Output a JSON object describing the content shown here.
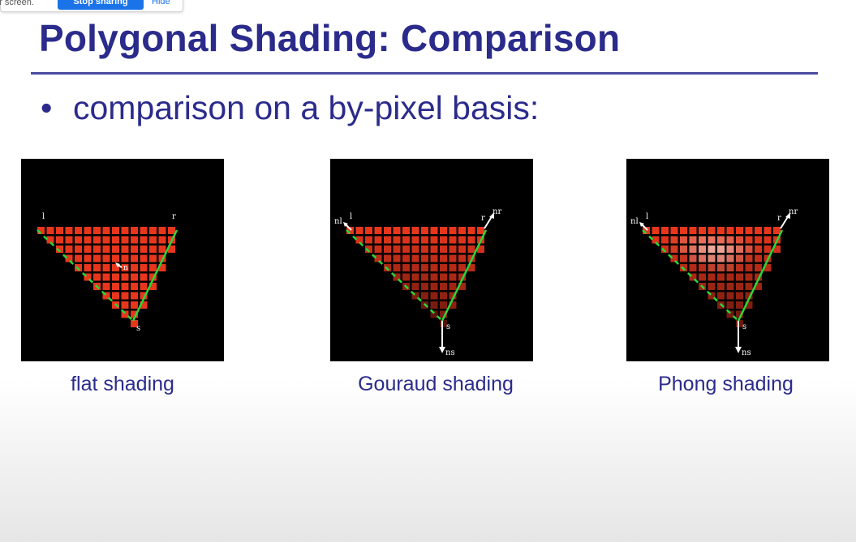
{
  "share_bar": {
    "message": "ur screen.",
    "stop_label": "Stop sharing",
    "hide_label": "Hide"
  },
  "slide": {
    "title": "Polygonal Shading: Comparison",
    "bullet": "comparison on a by-pixel basis:",
    "panels": [
      {
        "caption": "flat shading",
        "labels": {
          "l": "l",
          "r": "r",
          "s": "s",
          "n": "n"
        }
      },
      {
        "caption": "Gouraud shading",
        "labels": {
          "nl": "nl",
          "l": "l",
          "r": "r",
          "nr": "nr",
          "s": "s",
          "ns": "ns"
        }
      },
      {
        "caption": "Phong shading",
        "labels": {
          "nl": "nl",
          "l": "l",
          "r": "r",
          "nr": "nr",
          "s": "s",
          "ns": "ns"
        }
      }
    ]
  },
  "colors": {
    "title": "#2b2b8c",
    "pixel": "#e8361c",
    "edge": "#2bd63a",
    "panel_bg": "#000000"
  }
}
